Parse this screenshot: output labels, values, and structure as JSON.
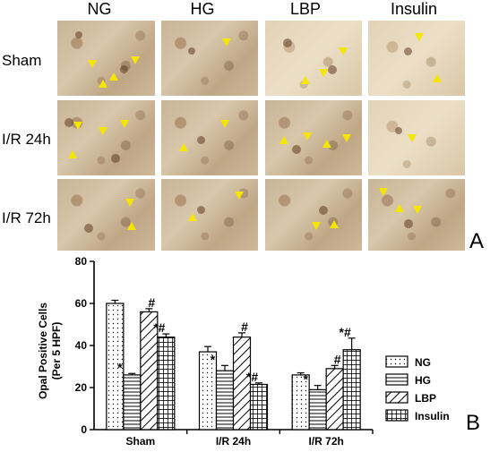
{
  "panel_a": {
    "columns": [
      "NG",
      "HG",
      "LBP",
      "Insulin"
    ],
    "rows": [
      "Sham",
      "I/R 24h",
      "I/R 72h"
    ],
    "letter": "A"
  },
  "panel_b": {
    "letter": "B"
  },
  "chart_data": {
    "type": "bar",
    "categories": [
      "Sham",
      "I/R 24h",
      "I/R 72h"
    ],
    "ylabel_line1": "Opal Positive Cells",
    "ylabel_line2": "(Per 5 HPF)",
    "ylim": [
      0,
      80
    ],
    "yticks": [
      0,
      20,
      40,
      60,
      80
    ],
    "legend_position": "right",
    "series": [
      {
        "name": "NG",
        "pattern": "dots",
        "values": [
          60,
          37,
          26
        ],
        "errors": [
          1.5,
          2.5,
          1
        ],
        "annotations": [
          "",
          "",
          ""
        ]
      },
      {
        "name": "HG",
        "pattern": "hlines",
        "values": [
          26,
          28,
          19
        ],
        "errors": [
          0.7,
          2.5,
          2
        ],
        "annotations": [
          "*",
          "*",
          "*"
        ]
      },
      {
        "name": "LBP",
        "pattern": "diag",
        "values": [
          56,
          44,
          29
        ],
        "errors": [
          1.5,
          2,
          1.5
        ],
        "annotations": [
          "#",
          "#",
          "#"
        ]
      },
      {
        "name": "Insulin",
        "pattern": "grid",
        "values": [
          44,
          21.5,
          38
        ],
        "errors": [
          1.5,
          0.7,
          5.5
        ],
        "annotations": [
          "*#",
          "*#",
          "*#"
        ]
      }
    ]
  }
}
